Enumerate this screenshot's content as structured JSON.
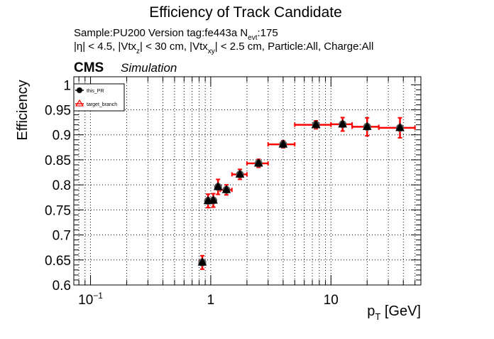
{
  "chart_data": {
    "type": "scatter",
    "title": "Efficiency of Track Candidate",
    "subtitle_line1": {
      "sample": "Sample:PU200   Version tag:fe443a  N",
      "sub": "evt",
      "rest": ":175"
    },
    "subtitle_line2": {
      "p1": "|η| < 4.5, |Vtx",
      "s1": "z",
      "p2": "| < 30 cm, |Vtx",
      "s2": "xy",
      "p3": "| < 2.5 cm, Particle:All, Charge:All"
    },
    "cms_label": "CMS",
    "cms_extra": "Simulation",
    "xlabel": {
      "main": "p",
      "sub": "T",
      "unit": " [GeV]"
    },
    "ylabel": "Efficiency",
    "xscale": "log",
    "xlim": [
      0.0726,
      56
    ],
    "ylim": [
      0.6,
      1.016
    ],
    "x_ticks": [
      {
        "value": 0.1,
        "label": "10",
        "sup": "−1"
      },
      {
        "value": 1,
        "label": "1"
      },
      {
        "value": 10,
        "label": "10"
      }
    ],
    "y_ticks": [
      {
        "value": 0.6,
        "label": "0.6"
      },
      {
        "value": 0.65,
        "label": "0.65"
      },
      {
        "value": 0.7,
        "label": "0.7"
      },
      {
        "value": 0.75,
        "label": "0.75"
      },
      {
        "value": 0.8,
        "label": "0.8"
      },
      {
        "value": 0.85,
        "label": "0.85"
      },
      {
        "value": 0.9,
        "label": "0.9"
      },
      {
        "value": 0.95,
        "label": "0.95"
      },
      {
        "value": 1.0,
        "label": "1"
      }
    ],
    "grid": true,
    "legend_position": "top-left",
    "x_bins": [
      [
        0.8,
        0.9
      ],
      [
        0.9,
        1.0
      ],
      [
        1.0,
        1.1
      ],
      [
        1.1,
        1.2
      ],
      [
        1.2,
        1.5
      ],
      [
        1.5,
        2
      ],
      [
        2,
        3
      ],
      [
        3,
        5
      ],
      [
        5,
        10
      ],
      [
        10,
        15
      ],
      [
        15,
        25
      ],
      [
        25,
        50
      ]
    ],
    "series": [
      {
        "name": "this_PR",
        "color": "#000000",
        "marker": "circle",
        "x": [
          0.85,
          0.95,
          1.05,
          1.15,
          1.35,
          1.75,
          2.5,
          4,
          7.5,
          12.5,
          20,
          37.5
        ],
        "y": [
          0.645,
          0.768,
          0.769,
          0.796,
          0.79,
          0.821,
          0.843,
          0.881,
          0.92,
          0.921,
          0.916,
          0.914
        ],
        "yerr": [
          0.0135,
          0.0135,
          0.0135,
          0.015,
          0.01,
          0.01,
          0.008,
          0.007,
          0.008,
          0.0135,
          0.018,
          0.02
        ]
      },
      {
        "name": "target_branch",
        "color": "#ff0000",
        "marker": "open-triangle",
        "x": [
          0.85,
          0.95,
          1.05,
          1.15,
          1.35,
          1.75,
          2.5,
          4,
          7.5,
          12.5,
          20,
          37.5
        ],
        "y": [
          0.645,
          0.768,
          0.769,
          0.796,
          0.79,
          0.821,
          0.843,
          0.881,
          0.92,
          0.921,
          0.916,
          0.914
        ],
        "yerr": [
          0.0135,
          0.0135,
          0.0135,
          0.015,
          0.01,
          0.01,
          0.008,
          0.007,
          0.008,
          0.0135,
          0.018,
          0.02
        ]
      }
    ]
  }
}
